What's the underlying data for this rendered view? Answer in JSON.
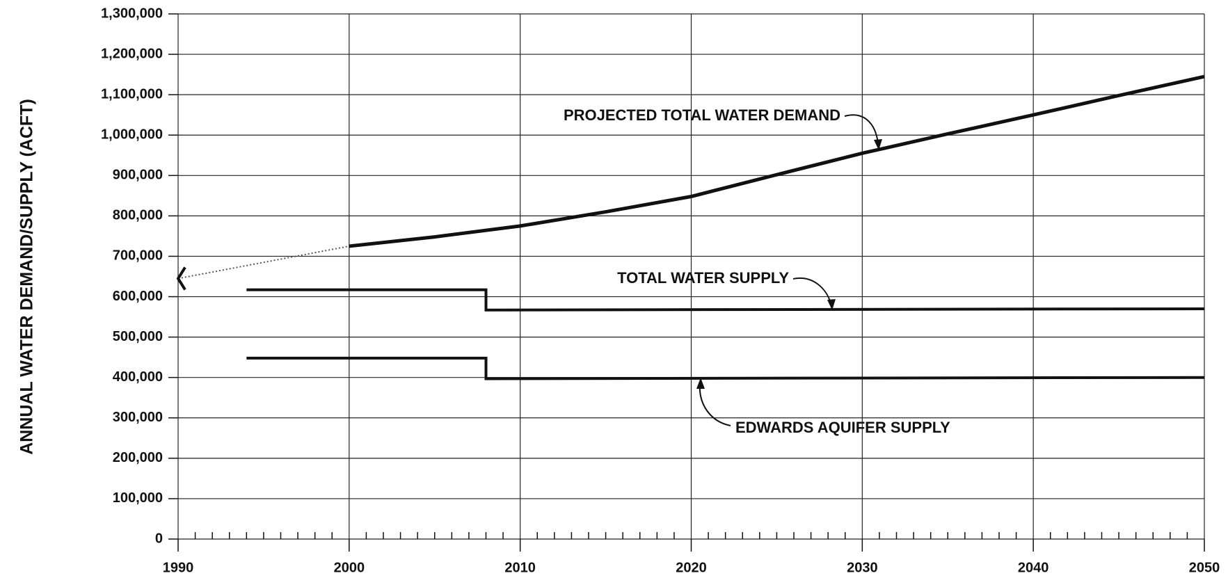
{
  "chart_data": {
    "type": "line",
    "ylabel": "ANNUAL WATER DEMAND/SUPPLY (ACFT)",
    "xlim": [
      1990,
      2050
    ],
    "xticks": [
      1990,
      2000,
      2010,
      2020,
      2030,
      2040,
      2050
    ],
    "xminorticks": [
      1991,
      1992,
      1993,
      1994,
      1995,
      1996,
      1997,
      1998,
      1999,
      2001,
      2002,
      2003,
      2004,
      2005,
      2006,
      2007,
      2008,
      2009,
      2011,
      2012,
      2013,
      2014,
      2015,
      2016,
      2017,
      2018,
      2019,
      2021,
      2022,
      2023,
      2024,
      2025,
      2026,
      2027,
      2028,
      2029,
      2031,
      2032,
      2033,
      2034,
      2035,
      2036,
      2037,
      2038,
      2039,
      2041,
      2042,
      2043,
      2044,
      2045,
      2046,
      2047,
      2048,
      2049
    ],
    "ylim": [
      0,
      1300000
    ],
    "yticks": [
      0,
      {
        "value": 100000,
        "label": "100,000"
      },
      {
        "value": 200000,
        "label": "200,000"
      },
      {
        "value": 300000,
        "label": "300,000"
      },
      {
        "value": 400000,
        "label": "400,000"
      },
      {
        "value": 500000,
        "label": "500,000"
      },
      {
        "value": 600000,
        "label": "600,000"
      },
      {
        "value": 700000,
        "label": "700,000"
      },
      {
        "value": 800000,
        "label": "800,000"
      },
      {
        "value": 900000,
        "label": "900,000"
      },
      {
        "value": 1000000,
        "label": "1,000,000"
      },
      {
        "value": 1100000,
        "label": "1,100,000"
      },
      {
        "value": 1200000,
        "label": "1,200,000"
      },
      {
        "value": 1300000,
        "label": "1,300,000"
      }
    ],
    "grid": true,
    "series": [
      {
        "name": "PROJECTED TOTAL WATER DEMAND",
        "color": "#111111",
        "style": "solid",
        "x": [
          2000,
          2005,
          2010,
          2015,
          2020,
          2025,
          2030,
          2035,
          2040,
          2045,
          2050
        ],
        "values": [
          725000,
          748000,
          775000,
          810000,
          848000,
          902000,
          955000,
          1003000,
          1050000,
          1098000,
          1145000
        ]
      },
      {
        "color": "#555555",
        "style": "dotted",
        "x": [
          1990,
          2000
        ],
        "values": [
          645000,
          725000
        ]
      },
      {
        "name": "TOTAL WATER SUPPLY",
        "color": "#111111",
        "style": "solid",
        "x": [
          1994,
          2008,
          2008,
          2050
        ],
        "values": [
          617000,
          617000,
          567000,
          570000
        ]
      },
      {
        "name": "EDWARDS AQUIFER SUPPLY",
        "color": "#111111",
        "style": "solid",
        "x": [
          1994,
          2008,
          2008,
          2050
        ],
        "values": [
          448000,
          448000,
          397000,
          400000
        ]
      }
    ]
  }
}
